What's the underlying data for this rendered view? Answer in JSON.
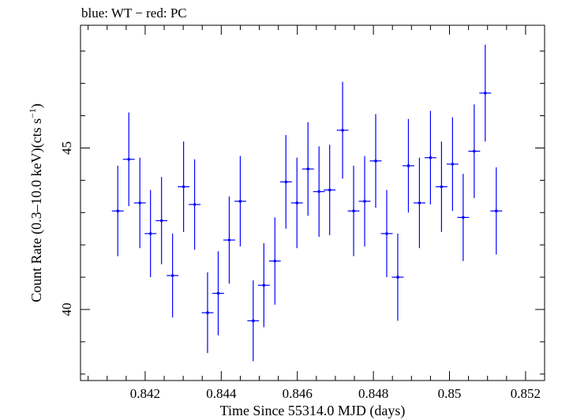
{
  "chart_data": {
    "type": "scatter",
    "title": "blue: WT − red: PC",
    "xlabel": "Time Since 55314.0 MJD (days)",
    "ylabel_main": "Count Rate (0.3–10.0 keV)(cts s",
    "ylabel_sup": "−1",
    "ylabel_close": ")",
    "xlim": [
      0.8403,
      0.8525
    ],
    "ylim": [
      37.8,
      48.8
    ],
    "x_ticks": [
      0.842,
      0.844,
      0.846,
      0.848,
      0.85,
      0.852
    ],
    "x_tick_labels": [
      "0.842",
      "0.844",
      "0.846",
      "0.848",
      "0.85",
      "0.852"
    ],
    "y_ticks": [
      40,
      45
    ],
    "y_tick_labels": [
      "40",
      "45"
    ],
    "x_minor_step": 0.0005,
    "y_minor_step": 1,
    "colors": {
      "series": "#0000ff",
      "axes": "#000000"
    },
    "x_halfwidth": 0.000155,
    "series": [
      {
        "color": "#0000ff",
        "points": [
          {
            "x": 0.84128,
            "y": 43.05,
            "err": 1.4
          },
          {
            "x": 0.84157,
            "y": 44.65,
            "err": 1.45
          },
          {
            "x": 0.84186,
            "y": 43.3,
            "err": 1.4
          },
          {
            "x": 0.84214,
            "y": 42.35,
            "err": 1.35
          },
          {
            "x": 0.84243,
            "y": 42.75,
            "err": 1.35
          },
          {
            "x": 0.84272,
            "y": 41.05,
            "err": 1.3
          },
          {
            "x": 0.84301,
            "y": 43.8,
            "err": 1.4
          },
          {
            "x": 0.8433,
            "y": 43.25,
            "err": 1.4
          },
          {
            "x": 0.84364,
            "y": 39.9,
            "err": 1.25
          },
          {
            "x": 0.84392,
            "y": 40.5,
            "err": 1.3
          },
          {
            "x": 0.84421,
            "y": 42.15,
            "err": 1.35
          },
          {
            "x": 0.8445,
            "y": 43.35,
            "err": 1.4
          },
          {
            "x": 0.84484,
            "y": 39.65,
            "err": 1.25
          },
          {
            "x": 0.84512,
            "y": 40.75,
            "err": 1.3
          },
          {
            "x": 0.84541,
            "y": 41.5,
            "err": 1.35
          },
          {
            "x": 0.8457,
            "y": 43.95,
            "err": 1.45
          },
          {
            "x": 0.84599,
            "y": 43.3,
            "err": 1.4
          },
          {
            "x": 0.84628,
            "y": 44.35,
            "err": 1.45
          },
          {
            "x": 0.84657,
            "y": 43.65,
            "err": 1.4
          },
          {
            "x": 0.84685,
            "y": 43.7,
            "err": 1.4
          },
          {
            "x": 0.84719,
            "y": 45.55,
            "err": 1.5
          },
          {
            "x": 0.84748,
            "y": 43.05,
            "err": 1.4
          },
          {
            "x": 0.84777,
            "y": 43.35,
            "err": 1.4
          },
          {
            "x": 0.84806,
            "y": 44.6,
            "err": 1.45
          },
          {
            "x": 0.84835,
            "y": 42.35,
            "err": 1.35
          },
          {
            "x": 0.84864,
            "y": 41.0,
            "err": 1.35
          },
          {
            "x": 0.84892,
            "y": 44.45,
            "err": 1.45
          },
          {
            "x": 0.84921,
            "y": 43.3,
            "err": 1.4
          },
          {
            "x": 0.8495,
            "y": 44.7,
            "err": 1.45
          },
          {
            "x": 0.84979,
            "y": 43.8,
            "err": 1.4
          },
          {
            "x": 0.85008,
            "y": 44.5,
            "err": 1.45
          },
          {
            "x": 0.85036,
            "y": 42.85,
            "err": 1.35
          },
          {
            "x": 0.85065,
            "y": 44.9,
            "err": 1.45
          },
          {
            "x": 0.85094,
            "y": 46.7,
            "err": 1.5
          },
          {
            "x": 0.85123,
            "y": 43.05,
            "err": 1.35
          }
        ]
      }
    ]
  }
}
